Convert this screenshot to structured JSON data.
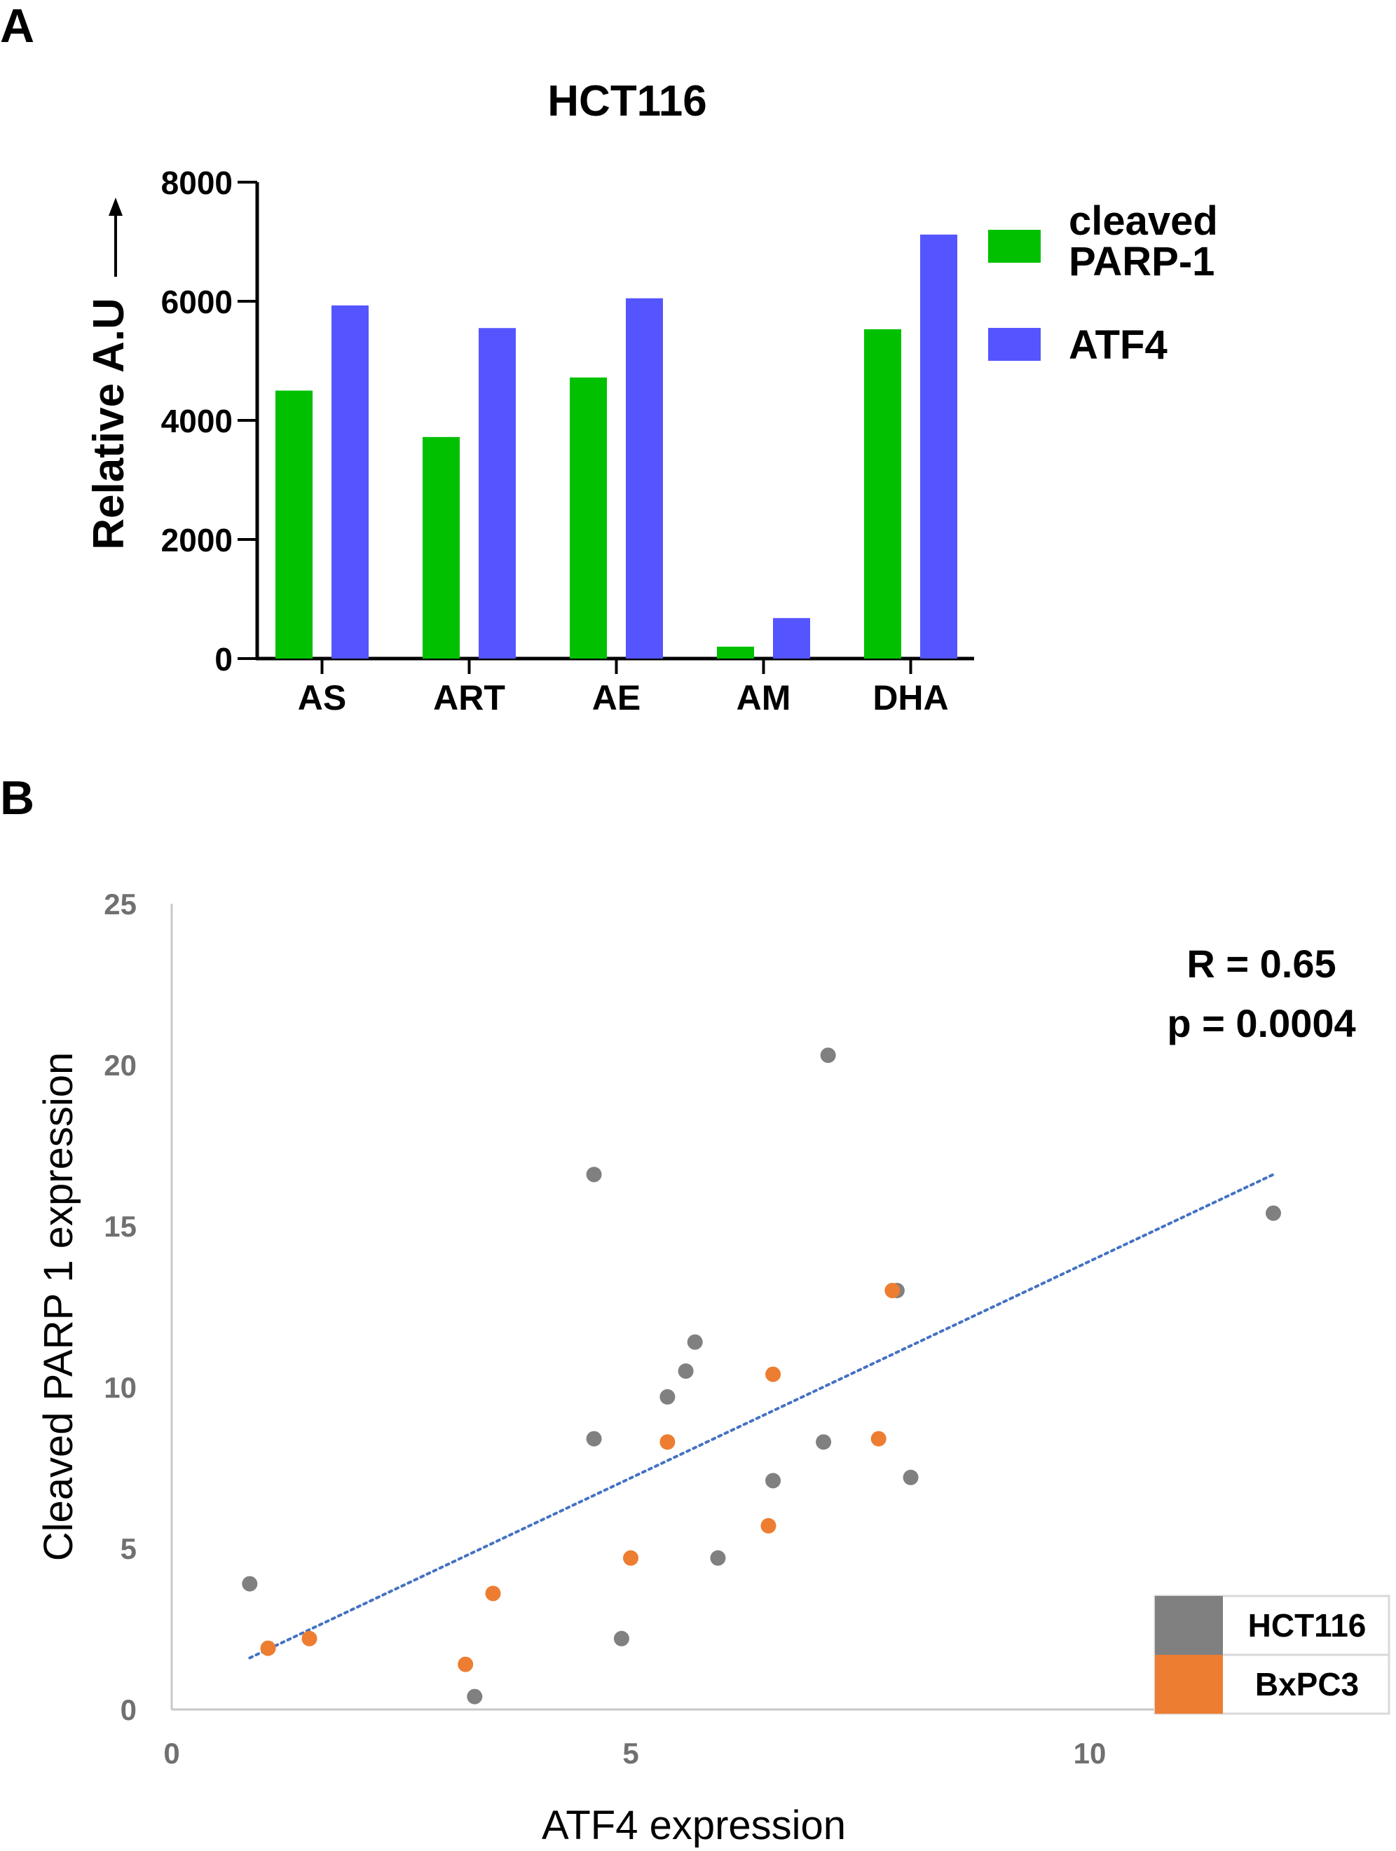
{
  "panels": {
    "a_label": "A",
    "b_label": "B"
  },
  "chart_data": [
    {
      "type": "bar",
      "title": "HCT116",
      "xlabel": "",
      "ylabel": "Relative A.U",
      "categories": [
        "AS",
        "ART",
        "AE",
        "AM",
        "DHA"
      ],
      "series": [
        {
          "name": "cleaved PARP-1",
          "color": "#00c000",
          "values": [
            4500,
            3720,
            4720,
            200,
            5530
          ]
        },
        {
          "name": "ATF4",
          "color": "#5555ff",
          "values": [
            5930,
            5550,
            6050,
            680,
            7120
          ]
        }
      ],
      "ylim": [
        0,
        8000
      ],
      "yticks": [
        "0",
        "2000",
        "4000",
        "6000",
        "8000"
      ],
      "grid": false,
      "legend_position": "right"
    },
    {
      "type": "scatter",
      "title": "",
      "xlabel": "ATF4 expression",
      "ylabel": "Cleaved PARP 1 expression",
      "xlim": [
        0,
        13
      ],
      "ylim": [
        0,
        25
      ],
      "xticks": [
        "0",
        "5",
        "10"
      ],
      "yticks": [
        "0",
        "5",
        "10",
        "15",
        "20",
        "25"
      ],
      "grid": false,
      "legend_position": "bottom-right",
      "series": [
        {
          "name": "HCT116",
          "color": "#808080",
          "points": [
            [
              0.85,
              3.9
            ],
            [
              3.3,
              0.4
            ],
            [
              4.6,
              16.6
            ],
            [
              4.6,
              8.4
            ],
            [
              4.9,
              2.2
            ],
            [
              5.4,
              9.7
            ],
            [
              5.6,
              10.5
            ],
            [
              5.7,
              11.4
            ],
            [
              5.95,
              4.7
            ],
            [
              6.55,
              7.1
            ],
            [
              7.1,
              8.3
            ],
            [
              7.15,
              20.3
            ],
            [
              7.9,
              13.0
            ],
            [
              8.05,
              7.2
            ],
            [
              12.0,
              15.4
            ]
          ]
        },
        {
          "name": "BxPC3",
          "color": "#ed7d31",
          "points": [
            [
              1.05,
              1.9
            ],
            [
              1.5,
              2.2
            ],
            [
              3.2,
              1.4
            ],
            [
              3.5,
              3.6
            ],
            [
              5.0,
              4.7
            ],
            [
              5.4,
              8.3
            ],
            [
              6.5,
              5.7
            ],
            [
              6.55,
              10.4
            ],
            [
              7.7,
              8.4
            ],
            [
              7.85,
              13.0
            ]
          ]
        }
      ],
      "trendline": {
        "color": "#4472c4",
        "x": [
          0.85,
          12.0
        ],
        "y": [
          1.6,
          16.6
        ]
      },
      "annotations": [
        "R = 0.65",
        "p = 0.0004"
      ]
    }
  ]
}
